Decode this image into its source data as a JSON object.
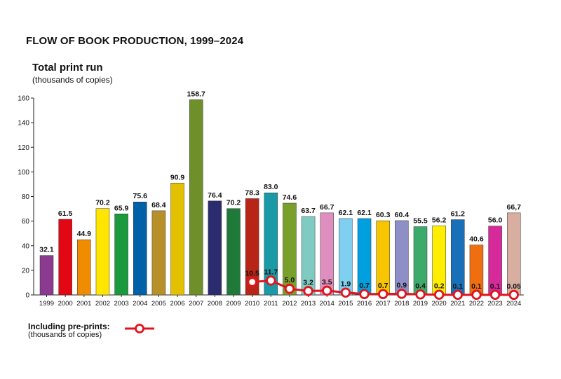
{
  "title": "FLOW OF BOOK PRODUCTION, 1999–2024",
  "legend": {
    "label": "Including pre-prints:",
    "unit": "(thousands of copies)",
    "color": "#e0141e"
  },
  "chart_data": {
    "type": "bar",
    "ylabel": "Total print run",
    "yunit": "(thousands of copies)",
    "ylim": [
      0,
      160
    ],
    "yticks": [
      0,
      20,
      40,
      60,
      80,
      100,
      120,
      140,
      160
    ],
    "grid": false,
    "categories": [
      "1999",
      "2000",
      "2001",
      "2002",
      "2003",
      "2004",
      "2005",
      "2006",
      "2007",
      "2008",
      "2009",
      "2010",
      "2011",
      "2012",
      "2013",
      "2014",
      "2015",
      "2016",
      "2017",
      "2018",
      "2019",
      "2020",
      "2021",
      "2022",
      "2023",
      "2024"
    ],
    "series": [
      {
        "values": [
          32.1,
          61.5,
          44.9,
          70.2,
          65.9,
          75.6,
          68.4,
          90.9,
          158.7,
          76.4,
          70.2,
          78.3,
          83.0,
          74.6,
          63.7,
          66.7,
          62.1,
          62.1,
          60.3,
          60.4,
          55.5,
          56.2,
          61.2,
          40.6,
          56.0,
          66.7
        ],
        "labels": [
          "32.1",
          "61.5",
          "44.9",
          "70.2",
          "65.9",
          "75.6",
          "68.4",
          "90.9",
          "158.7",
          "76.4",
          "70.2",
          "78.3",
          "83.0",
          "74.6",
          "63.7",
          "66.7",
          "62.1",
          "62.1",
          "60.3",
          "60.4",
          "55.5",
          "56.2",
          "61.2",
          "40.6",
          "56.0",
          "66,7"
        ],
        "colors": [
          "#8b3a8f",
          "#e30613",
          "#f08c00",
          "#ffe500",
          "#1a9a3c",
          "#0060a8",
          "#b8902a",
          "#e3c100",
          "#6e8f2a",
          "#2b2b6f",
          "#1f7a3a",
          "#b82516",
          "#1a9aa6",
          "#7aa02c",
          "#7fcbc2",
          "#df8fbf",
          "#7fcff0",
          "#00a0e0",
          "#f8c600",
          "#8f8fc8",
          "#3caa6a",
          "#ffee00",
          "#1a70b8",
          "#ee6e10",
          "#d62a9a",
          "#d8aea0"
        ]
      },
      {
        "name": "Including pre-prints",
        "type": "line",
        "x": [
          "2010",
          "2011",
          "2012",
          "2013",
          "2014",
          "2015",
          "2016",
          "2017",
          "2018",
          "2019",
          "2020",
          "2021",
          "2022",
          "2023",
          "2024"
        ],
        "values": [
          10.5,
          11.7,
          5.0,
          3.2,
          3.5,
          1.9,
          0.7,
          0.7,
          0.9,
          0.4,
          0.2,
          0.1,
          0.1,
          0.1,
          0.05
        ],
        "labels": [
          "10.5",
          "11.7",
          "5.0",
          "3.2",
          "3.5",
          "1.9",
          "0.7",
          "0.7",
          "0.9",
          "0.4",
          "0.2",
          "0.1",
          "0.1",
          "0.1",
          "0.05"
        ],
        "color": "#e0141e"
      }
    ]
  }
}
